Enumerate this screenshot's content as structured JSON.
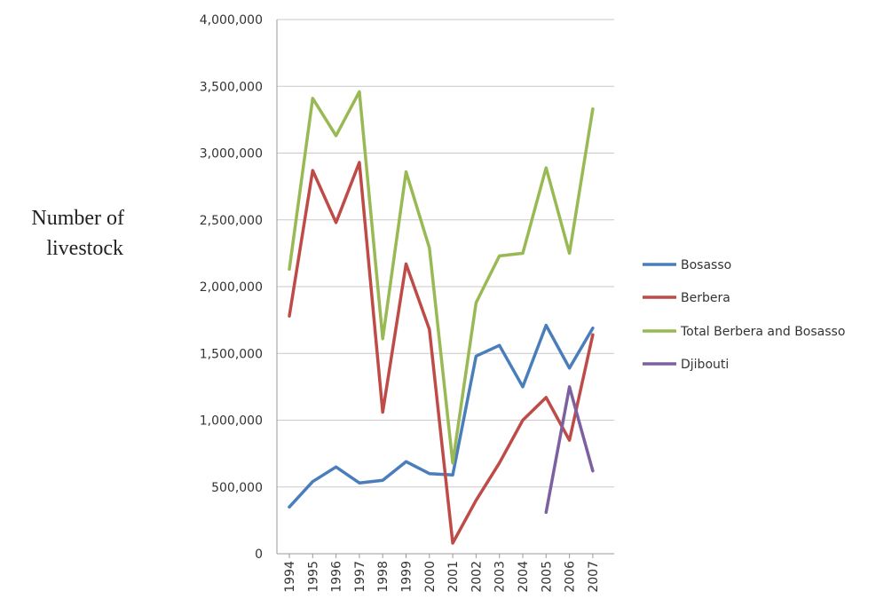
{
  "chart_data": {
    "type": "line",
    "title": "",
    "ylabel_lines": [
      "Number of",
      "livestock"
    ],
    "xlabel": "",
    "categories": [
      "1994",
      "1995",
      "1996",
      "1997",
      "1998",
      "1999",
      "2000",
      "2001",
      "2002",
      "2003",
      "2004",
      "2005",
      "2006",
      "2007"
    ],
    "ylim": [
      0,
      4000000
    ],
    "yticks": [
      0,
      500000,
      1000000,
      1500000,
      2000000,
      2500000,
      3000000,
      3500000,
      4000000
    ],
    "ytick_labels": [
      "0",
      "500,000",
      "1,000,000",
      "1,500,000",
      "2,000,000",
      "2,500,000",
      "3,000,000",
      "3,500,000",
      "4,000,000"
    ],
    "grid": true,
    "legend_position": "right",
    "series": [
      {
        "name": "Bosasso",
        "color": "#4a7ebb",
        "values": [
          350000,
          540000,
          650000,
          530000,
          550000,
          690000,
          600000,
          590000,
          1480000,
          1560000,
          1250000,
          1710000,
          1390000,
          1690000
        ]
      },
      {
        "name": "Berbera",
        "color": "#be4b48",
        "values": [
          1780000,
          2870000,
          2480000,
          2930000,
          1060000,
          2170000,
          1680000,
          80000,
          400000,
          680000,
          1000000,
          1170000,
          850000,
          1640000
        ]
      },
      {
        "name": "Total Berbera and Bosasso",
        "color": "#98b954",
        "values": [
          2130000,
          3410000,
          3130000,
          3460000,
          1610000,
          2860000,
          2290000,
          680000,
          1880000,
          2230000,
          2250000,
          2890000,
          2250000,
          3330000
        ]
      },
      {
        "name": "Djibouti",
        "color": "#7d60a0",
        "values": [
          null,
          null,
          null,
          null,
          null,
          null,
          null,
          null,
          null,
          null,
          null,
          310000,
          1250000,
          620000
        ]
      }
    ]
  }
}
